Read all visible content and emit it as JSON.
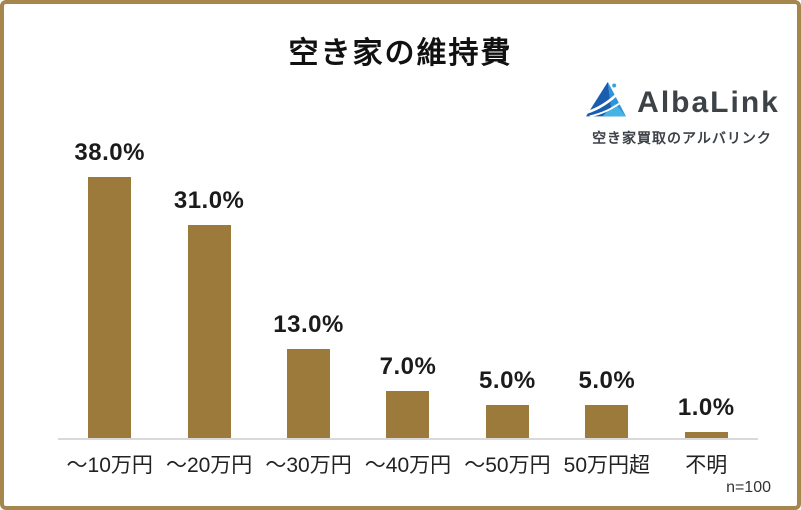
{
  "title": "空き家の維持費",
  "logo": {
    "name": "AlbaLink",
    "tagline": "空き家買取のアルバリンク",
    "icon": "mountain-sail-logo-icon",
    "colors": {
      "dark_blue": "#1a5dae",
      "light_blue": "#3aa4df",
      "text": "#3d4247"
    }
  },
  "sample_label": "n=100",
  "colors": {
    "bar": "#9c7a3c",
    "frame": "#a5874d",
    "axis": "#d9d9d9",
    "value_label": "#1b1b1b"
  },
  "chart_data": {
    "type": "bar",
    "title": "空き家の維持費",
    "categories": [
      "～10万円",
      "～20万円",
      "～30万円",
      "～40万円",
      "～50万円",
      "50万円超",
      "不明"
    ],
    "values": [
      38.0,
      31.0,
      13.0,
      7.0,
      5.0,
      5.0,
      1.0
    ],
    "value_labels": [
      "38.0%",
      "31.0%",
      "13.0%",
      "7.0%",
      "5.0%",
      "5.0%",
      "1.0%"
    ],
    "xlabel": "",
    "ylabel": "",
    "ylim": [
      0,
      40
    ],
    "grid": false,
    "legend": false,
    "bar_color": "#9c7a3c",
    "annotation": "n=100"
  }
}
